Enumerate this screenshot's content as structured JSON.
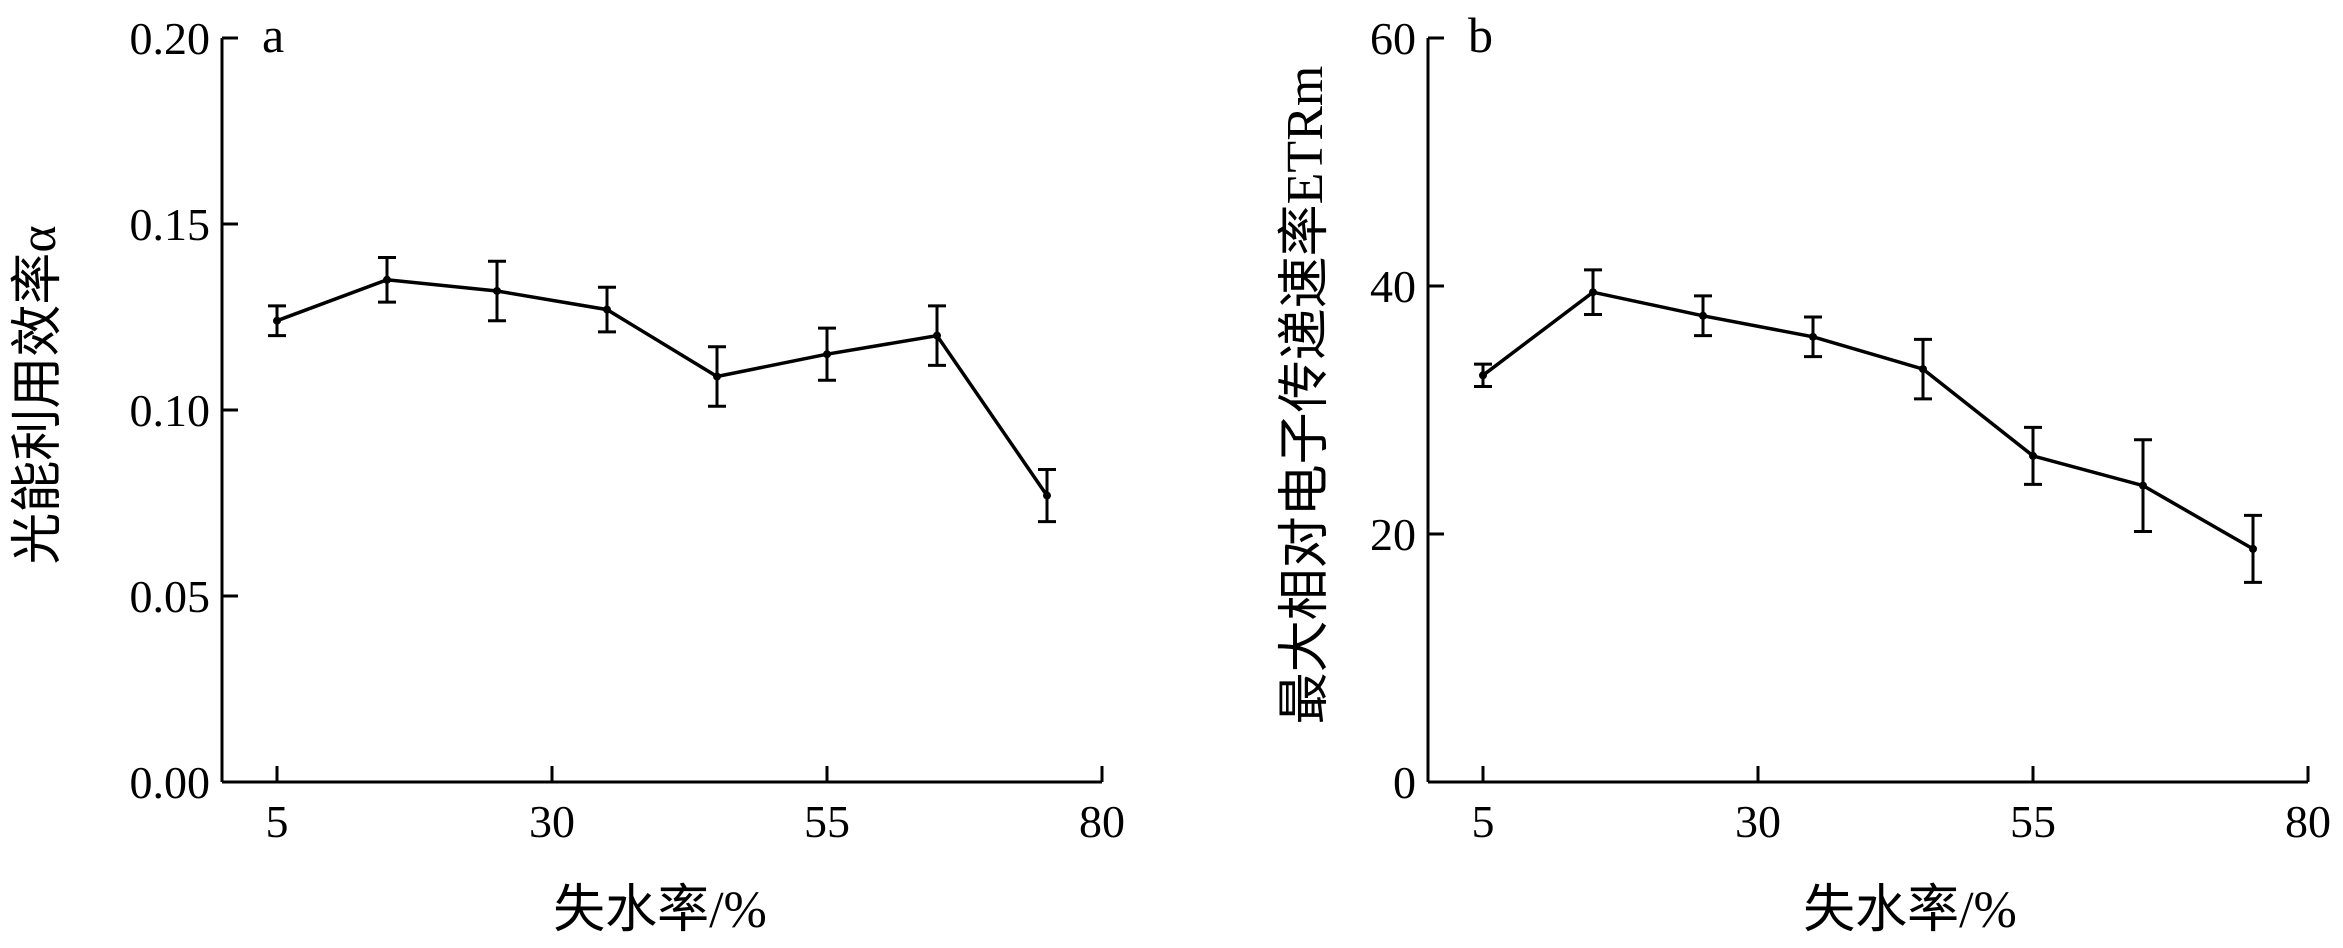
{
  "chart_data": [
    {
      "type": "line",
      "panel_label": "a",
      "xlabel": "失水率/%",
      "ylabel": "光能利用效率α",
      "xlim": [
        0,
        80
      ],
      "ylim": [
        0,
        0.2
      ],
      "xticks": [
        5,
        30,
        55,
        80
      ],
      "xtick_labels": [
        "5",
        "30",
        "55",
        "80"
      ],
      "yticks": [
        0,
        0.05,
        0.1,
        0.15,
        0.2
      ],
      "ytick_labels": [
        "0.00",
        "0.05",
        "0.10",
        "0.15",
        "0.20"
      ],
      "grid": false,
      "x": [
        5,
        15,
        25,
        35,
        45,
        55,
        65,
        75
      ],
      "values": [
        0.124,
        0.135,
        0.132,
        0.127,
        0.109,
        0.115,
        0.12,
        0.077
      ],
      "errors": [
        0.004,
        0.006,
        0.008,
        0.006,
        0.008,
        0.007,
        0.008,
        0.007
      ]
    },
    {
      "type": "line",
      "panel_label": "b",
      "xlabel": "失水率/%",
      "ylabel": "最大相对电子传递速率ETRm",
      "xlim": [
        0,
        80
      ],
      "ylim": [
        0,
        60
      ],
      "xticks": [
        5,
        30,
        55,
        80
      ],
      "xtick_labels": [
        "5",
        "30",
        "55",
        "80"
      ],
      "yticks": [
        0,
        20,
        40,
        60
      ],
      "ytick_labels": [
        "0",
        "20",
        "40",
        "60"
      ],
      "grid": false,
      "x": [
        5,
        15,
        25,
        35,
        45,
        55,
        65,
        75
      ],
      "values": [
        32.8,
        39.5,
        37.6,
        35.9,
        33.3,
        26.3,
        23.9,
        18.8
      ],
      "errors": [
        0.9,
        1.8,
        1.6,
        1.6,
        2.4,
        2.3,
        3.7,
        2.7
      ]
    }
  ]
}
